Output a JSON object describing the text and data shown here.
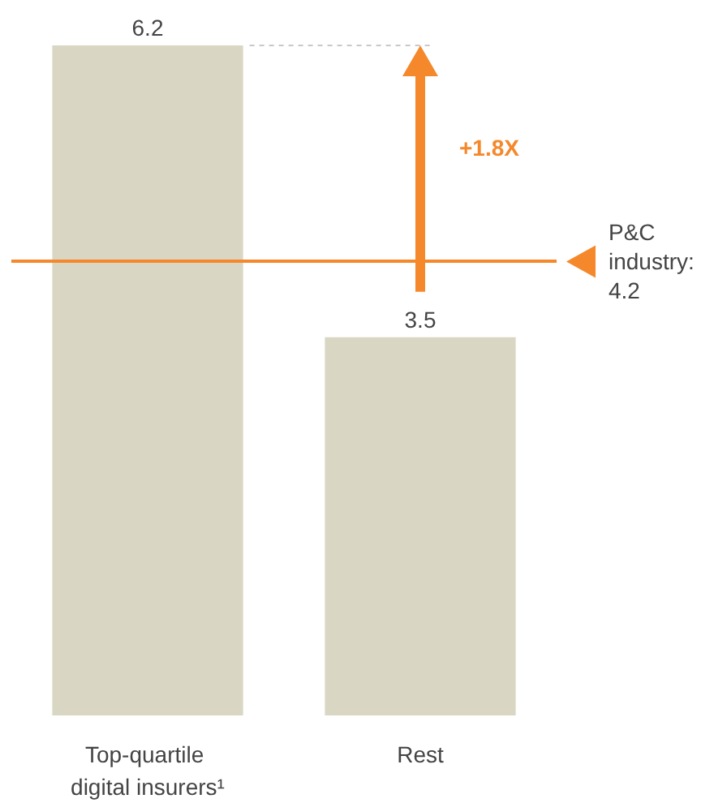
{
  "chart_data": {
    "type": "bar",
    "categories": [
      "Top-quartile digital insurers¹",
      "Rest"
    ],
    "values": [
      6.2,
      3.5
    ],
    "color": "#d9d7c4",
    "data_labels": true,
    "ref_lines": [
      {
        "axis": "y",
        "value": 4.2,
        "label": "P&C industry: 4.2",
        "color": "#f5882b"
      }
    ],
    "annotations": [
      "+1.8X"
    ]
  }
}
